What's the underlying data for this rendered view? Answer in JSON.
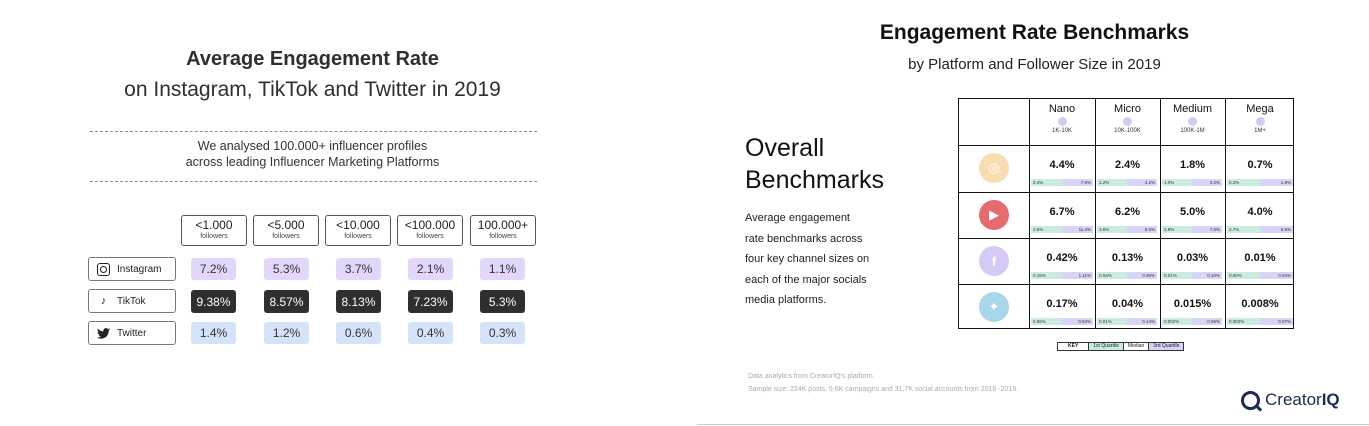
{
  "left": {
    "title_bold": "Average Engagement Rate",
    "title_sub": "on Instagram, TikTok and Twitter in 2019",
    "note_line1": "We analysed 100.000+ influencer profiles",
    "note_line2": "across leading Influencer Marketing Platforms",
    "columns": [
      {
        "value": "<1.000",
        "unit": "followers"
      },
      {
        "value": "<5.000",
        "unit": "followers"
      },
      {
        "value": "<10.000",
        "unit": "followers"
      },
      {
        "value": "<100.000",
        "unit": "followers"
      },
      {
        "value": "100.000+",
        "unit": "followers"
      }
    ],
    "rows": [
      {
        "platform": "Instagram",
        "icon": "instagram-icon",
        "values": [
          "7.2%",
          "5.3%",
          "3.7%",
          "2.1%",
          "1.1%"
        ],
        "color": "#e3d6fb"
      },
      {
        "platform": "TikTok",
        "icon": "tiktok-icon",
        "values": [
          "9.38%",
          "8.57%",
          "8.13%",
          "7.23%",
          "5.3%"
        ],
        "color": "#2f2f2f"
      },
      {
        "platform": "Twitter",
        "icon": "twitter-icon",
        "values": [
          "1.4%",
          "1.2%",
          "0.6%",
          "0.4%",
          "0.3%"
        ],
        "color": "#d4e3fa"
      }
    ]
  },
  "right": {
    "title": "Engagement Rate Benchmarks",
    "subtitle": "by Platform and Follower Size in 2019",
    "section_line1": "Overall",
    "section_line2": "Benchmarks",
    "desc": [
      "Average engagement",
      "rate benchmarks across",
      "four key channel sizes on",
      "each of the major socials",
      "media platforms."
    ],
    "tiers": [
      {
        "name": "Nano",
        "range": "1K-10K"
      },
      {
        "name": "Micro",
        "range": "10K-100K"
      },
      {
        "name": "Medium",
        "range": "100K-1M"
      },
      {
        "name": "Mega",
        "range": "1M+"
      }
    ],
    "platforms": [
      {
        "icon": "instagram-icon",
        "color": "#f7ddb0",
        "cells": [
          {
            "median": "4.4%",
            "q1": "2.4%",
            "q3": "7.6%"
          },
          {
            "median": "2.4%",
            "q1": "1.2%",
            "q3": "4.2%"
          },
          {
            "median": "1.8%",
            "q1": "1.0%",
            "q3": "3.2%"
          },
          {
            "median": "0.7%",
            "q1": "0.2%",
            "q3": "1.8%"
          }
        ]
      },
      {
        "icon": "youtube-icon",
        "color": "#e56b6f",
        "cells": [
          {
            "median": "6.7%",
            "q1": "3.6%",
            "q3": "11.4%"
          },
          {
            "median": "6.2%",
            "q1": "3.6%",
            "q3": "9.5%"
          },
          {
            "median": "5.0%",
            "q1": "2.9%",
            "q3": "7.5%"
          },
          {
            "median": "4.0%",
            "q1": "2.7%",
            "q3": "5.9%"
          }
        ]
      },
      {
        "icon": "facebook-icon",
        "color": "#d7c9f5",
        "cells": [
          {
            "median": "0.42%",
            "q1": "0.15%",
            "q3": "1.11%"
          },
          {
            "median": "0.13%",
            "q1": "0.04%",
            "q3": "0.36%"
          },
          {
            "median": "0.03%",
            "q1": "0.01%",
            "q3": "0.10%"
          },
          {
            "median": "0.01%",
            "q1": "0.00%",
            "q3": "0.04%"
          }
        ]
      },
      {
        "icon": "twitter-icon",
        "color": "#a6d8ea",
        "cells": [
          {
            "median": "0.17%",
            "q1": "0.06%",
            "q3": "0.53%"
          },
          {
            "median": "0.04%",
            "q1": "0.01%",
            "q3": "0.14%"
          },
          {
            "median": "0.015%",
            "q1": "0.002%",
            "q3": "0.06%"
          },
          {
            "median": "0.008%",
            "q1": "0.002%",
            "q3": "0.07%"
          }
        ]
      }
    ],
    "key": [
      "KEY",
      "1st Quartile",
      "Median",
      "3rd Quartile"
    ],
    "footnote1": "Data analytics from CreatorIQ's platform.",
    "footnote2": "Sample size: 224K posts, 5,6K campaigns and 31,7K social accounts from 2016 -2019.",
    "brand_light": "Creator",
    "brand_bold": "IQ"
  }
}
